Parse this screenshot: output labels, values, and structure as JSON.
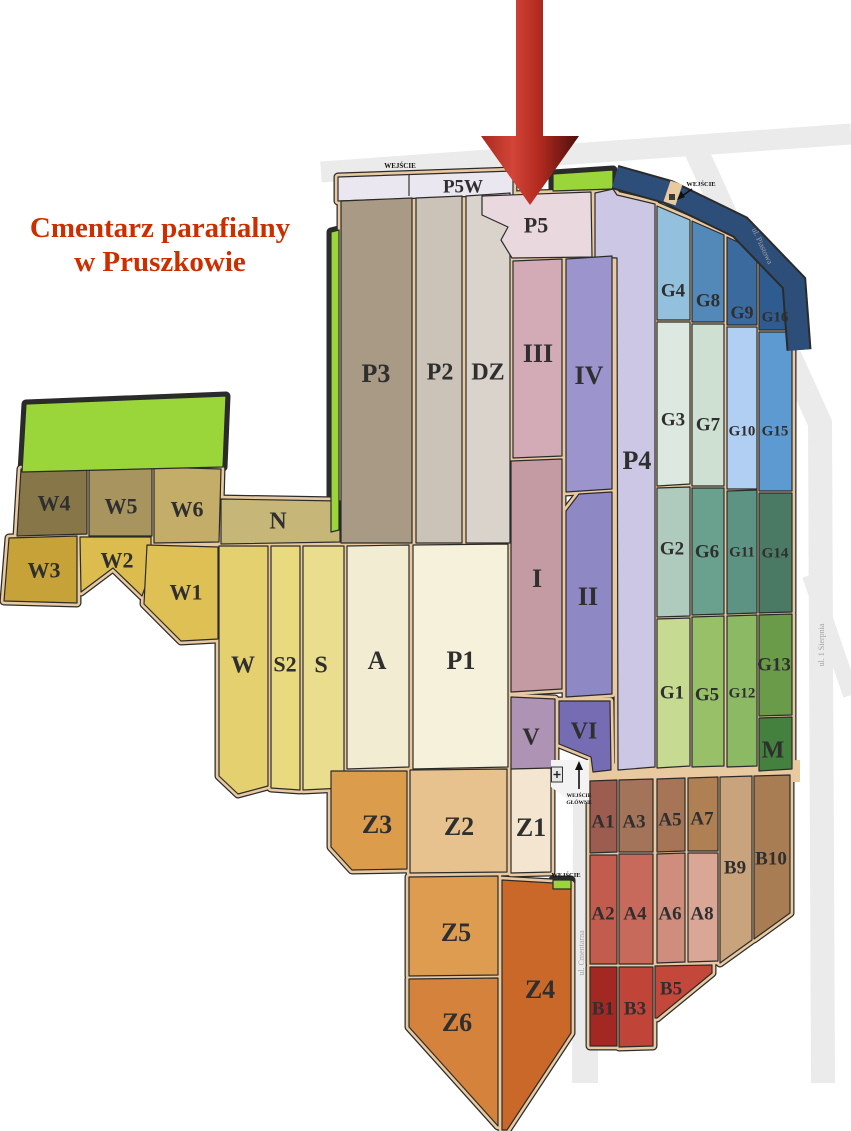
{
  "page_title": "Cmentarz parafialny w Pruszkowie",
  "title": {
    "line1": "Cmentarz parafialny",
    "line2": "w Pruszkowie",
    "color": "#cc2e00"
  },
  "palette": {
    "path": "#e9c9a0",
    "road": "#ebebeb",
    "outline": "#2b2b2b",
    "green": "#9ad53a",
    "navy": "#2d4e78",
    "plaza": "#f3f3f3",
    "label": "#2f2f2f",
    "street_label": "#a3a3a3"
  },
  "arrow": {
    "c0": "#a8291e",
    "c1": "#d24538",
    "c2": "#b52b20",
    "c3": "#4e0e0b"
  },
  "entrances": {
    "top": "WEJŚCIE",
    "northeast": "WEJŚCIE",
    "south": "WEJŚCIE",
    "main_line1": "WEJŚCIE",
    "main_line2": "GŁÓWNE"
  },
  "streets": [
    {
      "name": "ul. Piastowa"
    },
    {
      "name": "ul. 1 Sierpnia"
    },
    {
      "name": "ul. Cmentarna"
    }
  ],
  "sections": [
    {
      "id": "P5W",
      "label": "P5W",
      "color": "#eae7f1"
    },
    {
      "id": "P3",
      "label": "P3",
      "color": "#a89a84"
    },
    {
      "id": "P2",
      "label": "P2",
      "color": "#cbc3b7"
    },
    {
      "id": "DZ",
      "label": "DZ",
      "color": "#d9d3cb"
    },
    {
      "id": "P5",
      "label": "P5",
      "color": "#ead8df"
    },
    {
      "id": "P4",
      "label": "P4",
      "color": "#cbc7e5"
    },
    {
      "id": "III",
      "label": "III",
      "color": "#d3abb6"
    },
    {
      "id": "I",
      "label": "I",
      "color": "#c59ba3"
    },
    {
      "id": "IV",
      "label": "IV",
      "color": "#9b94cd"
    },
    {
      "id": "II",
      "label": "II",
      "color": "#8e88c5"
    },
    {
      "id": "V",
      "label": "V",
      "color": "#ae93b4"
    },
    {
      "id": "VI",
      "label": "VI",
      "color": "#756cb4"
    },
    {
      "id": "N",
      "label": "N",
      "color": "#c6b678"
    },
    {
      "id": "W",
      "label": "W",
      "color": "#e4d06f"
    },
    {
      "id": "S2",
      "label": "S2",
      "color": "#e9d97f"
    },
    {
      "id": "S",
      "label": "S",
      "color": "#eade8e"
    },
    {
      "id": "A",
      "label": "A",
      "color": "#f2ecd2"
    },
    {
      "id": "P1",
      "label": "P1",
      "color": "#f6f1da"
    },
    {
      "id": "W4",
      "label": "W4",
      "color": "#877748"
    },
    {
      "id": "W5",
      "label": "W5",
      "color": "#a7945e"
    },
    {
      "id": "W6",
      "label": "W6",
      "color": "#c3ad68"
    },
    {
      "id": "W3",
      "label": "W3",
      "color": "#c7a238"
    },
    {
      "id": "W2",
      "label": "W2",
      "color": "#dcbc4e"
    },
    {
      "id": "W1",
      "label": "W1",
      "color": "#dfc055"
    },
    {
      "id": "G4",
      "label": "G4",
      "color": "#93c1dd"
    },
    {
      "id": "G8",
      "label": "G8",
      "color": "#5289b8"
    },
    {
      "id": "G9",
      "label": "G9",
      "color": "#3a6a9e"
    },
    {
      "id": "G16",
      "label": "G16",
      "color": "#2f5c90"
    },
    {
      "id": "G3",
      "label": "G3",
      "color": "#dde9e0"
    },
    {
      "id": "G7",
      "label": "G7",
      "color": "#cde0d2"
    },
    {
      "id": "G10",
      "label": "G10",
      "color": "#b0cff2"
    },
    {
      "id": "G15",
      "label": "G15",
      "color": "#5e9ad2"
    },
    {
      "id": "G2",
      "label": "G2",
      "color": "#aecbbd"
    },
    {
      "id": "G6",
      "label": "G6",
      "color": "#6aa18e"
    },
    {
      "id": "G11",
      "label": "G11",
      "color": "#5d9382"
    },
    {
      "id": "G14",
      "label": "G14",
      "color": "#4a7a63"
    },
    {
      "id": "G1",
      "label": "G1",
      "color": "#c6da92"
    },
    {
      "id": "G5",
      "label": "G5",
      "color": "#97c068"
    },
    {
      "id": "G12",
      "label": "G12",
      "color": "#8cba64"
    },
    {
      "id": "G13",
      "label": "G13",
      "color": "#699b48"
    },
    {
      "id": "M",
      "label": "M",
      "color": "#44803e"
    },
    {
      "id": "A1",
      "label": "A1",
      "color": "#9c5c50"
    },
    {
      "id": "A3",
      "label": "A3",
      "color": "#a3735a"
    },
    {
      "id": "A5",
      "label": "A5",
      "color": "#a67457"
    },
    {
      "id": "A7",
      "label": "A7",
      "color": "#b08055"
    },
    {
      "id": "A2",
      "label": "A2",
      "color": "#c25c4e"
    },
    {
      "id": "A4",
      "label": "A4",
      "color": "#c76a5b"
    },
    {
      "id": "A6",
      "label": "A6",
      "color": "#cf8d7d"
    },
    {
      "id": "A8",
      "label": "A8",
      "color": "#daa696"
    },
    {
      "id": "B9",
      "label": "B9",
      "color": "#c9a37c"
    },
    {
      "id": "B10",
      "label": "B10",
      "color": "#a97d54"
    },
    {
      "id": "B1",
      "label": "B1",
      "color": "#a32723"
    },
    {
      "id": "B3",
      "label": "B3",
      "color": "#c04438"
    },
    {
      "id": "B5",
      "label": "B5",
      "color": "#c4473c"
    },
    {
      "id": "Z3",
      "label": "Z3",
      "color": "#db9d4c"
    },
    {
      "id": "Z2",
      "label": "Z2",
      "color": "#e7c28e"
    },
    {
      "id": "Z1",
      "label": "Z1",
      "color": "#f3e5d0"
    },
    {
      "id": "Z5",
      "label": "Z5",
      "color": "#dd9c50"
    },
    {
      "id": "Z6",
      "label": "Z6",
      "color": "#d5823c"
    },
    {
      "id": "Z4",
      "label": "Z4",
      "color": "#c96829"
    }
  ]
}
